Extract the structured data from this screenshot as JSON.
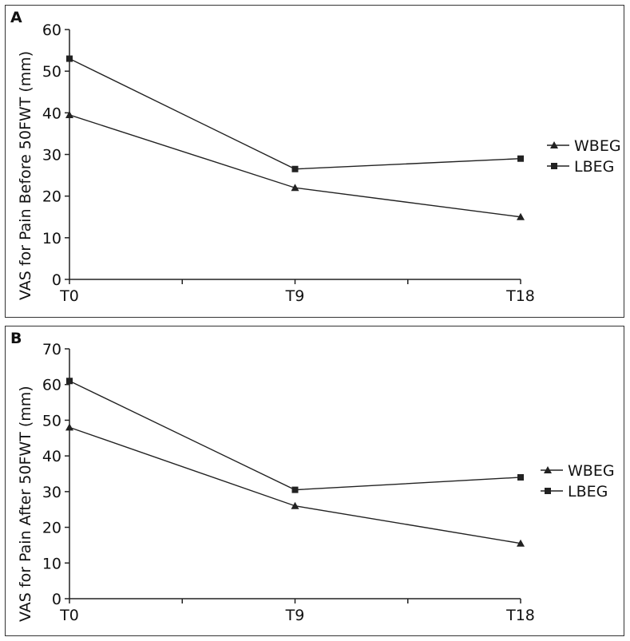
{
  "colors": {
    "line": "#222222",
    "axis": "#222222",
    "border": "#333333"
  },
  "chart_data": [
    {
      "panel_label": "A",
      "type": "line",
      "xlabel": "",
      "ylabel": "VAS for Pain Before 50FWT (mm)",
      "categories": [
        "T0",
        "T9",
        "T18"
      ],
      "ylim": [
        0,
        60
      ],
      "yticks": [
        0,
        10,
        20,
        30,
        40,
        50,
        60
      ],
      "grid": false,
      "legend_position": "right",
      "series": [
        {
          "name": "WBEG",
          "marker": "triangle",
          "values": [
            39.5,
            22,
            15
          ]
        },
        {
          "name": "LBEG",
          "marker": "square",
          "values": [
            53,
            26.5,
            29
          ]
        }
      ]
    },
    {
      "panel_label": "B",
      "type": "line",
      "xlabel": "",
      "ylabel": "VAS for Pain After 50FWT (mm)",
      "categories": [
        "T0",
        "T9",
        "T18"
      ],
      "ylim": [
        0,
        70
      ],
      "yticks": [
        0,
        10,
        20,
        30,
        40,
        50,
        60,
        70
      ],
      "grid": false,
      "legend_position": "right",
      "series": [
        {
          "name": "WBEG",
          "marker": "triangle",
          "values": [
            48,
            26,
            15.5
          ]
        },
        {
          "name": "LBEG",
          "marker": "square",
          "values": [
            61,
            30.5,
            34
          ]
        }
      ]
    }
  ]
}
